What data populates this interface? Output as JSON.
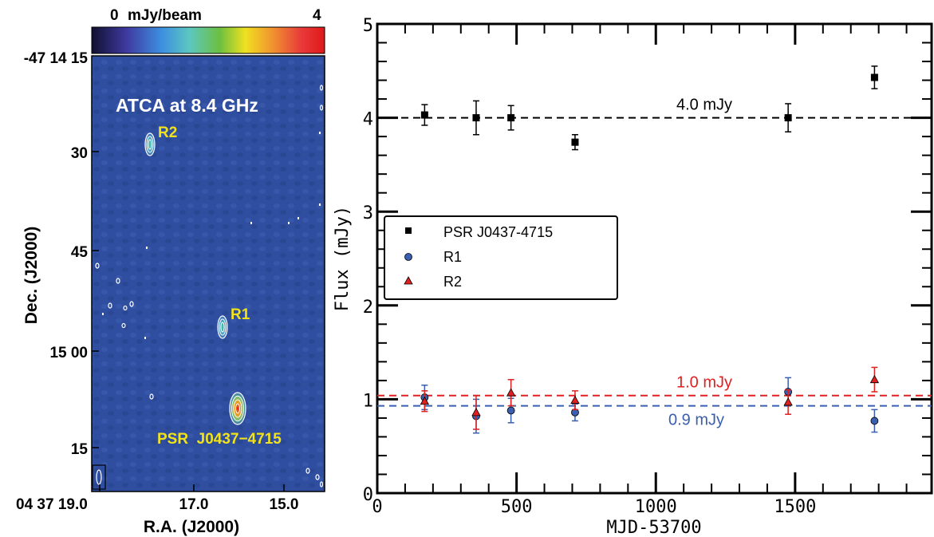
{
  "chart_data": [
    {
      "type": "image",
      "colorbar": {
        "title": "mJy/beam",
        "min_label": "0",
        "max_label": "4",
        "range": [
          0,
          4
        ]
      },
      "title": "ATCA at 8.4 GHz",
      "xlabel": "R.A. (J2000)",
      "ylabel": "Dec. (J2000)",
      "x_ticks": [
        "04 37 19.0",
        "17.0",
        "15.0"
      ],
      "y_ticks": [
        "-47 14 15",
        "30",
        "45",
        "15 00",
        "15"
      ],
      "sources": [
        {
          "name": "R2",
          "ra": "04 37 17.6",
          "dec": "-47 14 28",
          "peak": 2.3
        },
        {
          "name": "R1",
          "ra": "04 37 16.1",
          "dec": "-47 14 56",
          "peak": 2.2
        },
        {
          "name": "PSR  J0437−4715",
          "ra": "04 37 15.8",
          "dec": "-47 15 08",
          "peak": 4.0
        }
      ],
      "colors": {
        "background": "#2e4fa0",
        "label": "#f2e21a"
      }
    },
    {
      "type": "scatter",
      "xlabel": "MJD-53700",
      "ylabel": "Flux (mJy)",
      "xlim": [
        0,
        1990
      ],
      "ylim": [
        0,
        5
      ],
      "x_ticks": [
        0,
        500,
        1000,
        1500
      ],
      "y_ticks": [
        0,
        1,
        2,
        3,
        4,
        5
      ],
      "legend_position": "left-middle",
      "series": [
        {
          "name": "PSR J0437-4715",
          "marker": "square",
          "color": "#000000",
          "x": [
            170,
            355,
            480,
            710,
            1475,
            1785
          ],
          "y": [
            4.03,
            4.0,
            4.0,
            3.74,
            4.0,
            4.43
          ],
          "err": [
            0.11,
            0.18,
            0.13,
            0.08,
            0.15,
            0.12
          ]
        },
        {
          "name": "R1",
          "marker": "circle",
          "color": "#3a5fb0",
          "x": [
            170,
            355,
            480,
            710,
            1475,
            1785
          ],
          "y": [
            1.02,
            0.82,
            0.88,
            0.86,
            1.08,
            0.77
          ],
          "err": [
            0.13,
            0.18,
            0.13,
            0.09,
            0.15,
            0.12
          ]
        },
        {
          "name": "R2",
          "marker": "triangle",
          "color": "#e02020",
          "x": [
            170,
            355,
            480,
            710,
            1475,
            1785
          ],
          "y": [
            0.98,
            0.86,
            1.07,
            0.99,
            0.97,
            1.21
          ],
          "err": [
            0.11,
            0.18,
            0.14,
            0.1,
            0.13,
            0.13
          ]
        }
      ],
      "reference_lines": [
        {
          "value": 4.0,
          "label": "4.0 mJy",
          "color": "#000000"
        },
        {
          "value": 1.04,
          "label": "1.0 mJy",
          "color": "#e02020"
        },
        {
          "value": 0.93,
          "label": "0.9 mJy",
          "color": "#3a5fb0"
        }
      ]
    }
  ]
}
